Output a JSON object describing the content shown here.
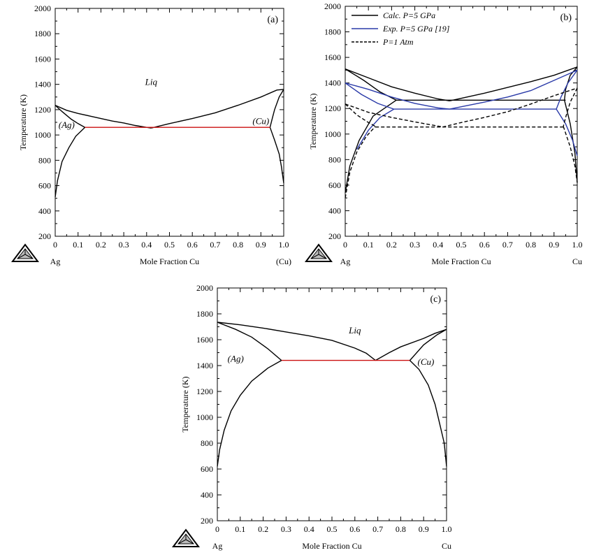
{
  "chart_data": [
    {
      "type": "line",
      "panel_label": "(a)",
      "xlabel": "Mole Fraction Cu",
      "ylabel": "Temperature (K)",
      "xlim": [
        0,
        1.0
      ],
      "ylim": [
        200,
        2000
      ],
      "x_ticks": [
        "0",
        "0.1",
        "0.2",
        "0.3",
        "0.4",
        "0.5",
        "0.6",
        "0.7",
        "0.8",
        "0.9",
        "1.0"
      ],
      "y_ticks": [
        "200",
        "400",
        "600",
        "800",
        "1000",
        "1200",
        "1400",
        "1600",
        "1800",
        "2000"
      ],
      "left_end_label": "Ag",
      "right_end_label": "(Cu)",
      "region_labels": [
        {
          "text": "Liq",
          "x": 0.42,
          "y": 1395
        },
        {
          "text": "(Ag)",
          "x": 0.05,
          "y": 1055
        },
        {
          "text": "(Cu)",
          "x": 0.9,
          "y": 1085
        }
      ],
      "grid": false,
      "series": [
        {
          "color": "#000000",
          "dash": "solid",
          "points": [
            [
              0,
              1235
            ],
            [
              0.05,
              1195
            ],
            [
              0.1,
              1170
            ],
            [
              0.15,
              1150
            ],
            [
              0.2,
              1130
            ],
            [
              0.25,
              1110
            ],
            [
              0.3,
              1095
            ],
            [
              0.35,
              1075
            ],
            [
              0.4,
              1060
            ],
            [
              0.42,
              1055
            ]
          ]
        },
        {
          "color": "#000000",
          "dash": "solid",
          "points": [
            [
              0.42,
              1055
            ],
            [
              0.5,
              1090
            ],
            [
              0.6,
              1130
            ],
            [
              0.7,
              1175
            ],
            [
              0.8,
              1235
            ],
            [
              0.9,
              1300
            ],
            [
              0.97,
              1355
            ],
            [
              1.0,
              1360
            ]
          ]
        },
        {
          "color": "#000000",
          "dash": "solid",
          "points": [
            [
              0,
              1235
            ],
            [
              0.03,
              1185
            ],
            [
              0.07,
              1125
            ],
            [
              0.1,
              1090
            ],
            [
              0.13,
              1060
            ]
          ]
        },
        {
          "color": "#000000",
          "dash": "solid",
          "points": [
            [
              0,
              510
            ],
            [
              0.01,
              640
            ],
            [
              0.03,
              790
            ],
            [
              0.06,
              900
            ],
            [
              0.09,
              990
            ],
            [
              0.13,
              1060
            ]
          ]
        },
        {
          "color": "#000000",
          "dash": "solid",
          "points": [
            [
              1.0,
              1360
            ],
            [
              0.98,
              1300
            ],
            [
              0.96,
              1200
            ],
            [
              0.95,
              1130
            ],
            [
              0.94,
              1060
            ]
          ]
        },
        {
          "color": "#000000",
          "dash": "solid",
          "points": [
            [
              0.94,
              1060
            ],
            [
              0.96,
              960
            ],
            [
              0.98,
              850
            ],
            [
              0.99,
              750
            ],
            [
              1.0,
              620
            ]
          ]
        },
        {
          "color": "#cc1111",
          "dash": "solid",
          "points": [
            [
              0.13,
              1060
            ],
            [
              0.94,
              1060
            ]
          ]
        }
      ]
    },
    {
      "type": "line",
      "panel_label": "(b)",
      "xlabel": "Mole Fraction Cu",
      "ylabel": "Temperature (K)",
      "xlim": [
        0,
        1.0
      ],
      "ylim": [
        200,
        2000
      ],
      "x_ticks": [
        "0",
        "0.1",
        "0.2",
        "0.3",
        "0.4",
        "0.5",
        "0.6",
        "0.7",
        "0.8",
        "0.9",
        "1.0"
      ],
      "y_ticks": [
        "200",
        "400",
        "600",
        "800",
        "1000",
        "1200",
        "1400",
        "1600",
        "1800",
        "2000"
      ],
      "left_end_label": "Ag",
      "right_end_label": "Cu",
      "grid": false,
      "legend": {
        "placement": "top-left",
        "entries": [
          {
            "label": "Calc. P=5 GPa",
            "color": "#000000",
            "dash": "solid"
          },
          {
            "label": "Exp. P=5 GPa  [19]",
            "color": "#2a3aa8",
            "dash": "solid"
          },
          {
            "label": "P=1 Atm",
            "color": "#000000",
            "dash": "dashed"
          }
        ]
      },
      "series": [
        {
          "name": "Calc. P=5 GPa",
          "color": "#000000",
          "dash": "solid",
          "points": [
            [
              0,
              1510
            ],
            [
              0.1,
              1440
            ],
            [
              0.2,
              1370
            ],
            [
              0.3,
              1320
            ],
            [
              0.4,
              1275
            ],
            [
              0.45,
              1260
            ]
          ]
        },
        {
          "color": "#000000",
          "dash": "solid",
          "points": [
            [
              0.45,
              1260
            ],
            [
              0.6,
              1320
            ],
            [
              0.7,
              1365
            ],
            [
              0.8,
              1410
            ],
            [
              0.9,
              1460
            ],
            [
              1.0,
              1525
            ]
          ]
        },
        {
          "color": "#000000",
          "dash": "solid",
          "points": [
            [
              0,
              1510
            ],
            [
              0.08,
              1420
            ],
            [
              0.15,
              1330
            ],
            [
              0.22,
              1265
            ]
          ]
        },
        {
          "color": "#000000",
          "dash": "solid",
          "points": [
            [
              0,
              540
            ],
            [
              0.02,
              750
            ],
            [
              0.06,
              950
            ],
            [
              0.12,
              1140
            ],
            [
              0.22,
              1265
            ]
          ]
        },
        {
          "color": "#000000",
          "dash": "solid",
          "points": [
            [
              0.22,
              1265
            ],
            [
              0.95,
              1265
            ]
          ]
        },
        {
          "color": "#000000",
          "dash": "solid",
          "points": [
            [
              1.0,
              1525
            ],
            [
              0.97,
              1460
            ],
            [
              0.95,
              1350
            ],
            [
              0.945,
              1265
            ]
          ]
        },
        {
          "color": "#000000",
          "dash": "solid",
          "points": [
            [
              0.945,
              1265
            ],
            [
              0.97,
              1080
            ],
            [
              0.99,
              850
            ],
            [
              1.0,
              620
            ]
          ]
        },
        {
          "name": "Exp. P=5 GPa  [19]",
          "color": "#2a3aa8",
          "dash": "solid",
          "points": [
            [
              0,
              1400
            ],
            [
              0.1,
              1350
            ],
            [
              0.2,
              1290
            ],
            [
              0.3,
              1240
            ],
            [
              0.4,
              1205
            ],
            [
              0.45,
              1195
            ]
          ]
        },
        {
          "color": "#2a3aa8",
          "dash": "solid",
          "points": [
            [
              0.45,
              1195
            ],
            [
              0.6,
              1250
            ],
            [
              0.7,
              1290
            ],
            [
              0.8,
              1340
            ],
            [
              0.9,
              1420
            ],
            [
              1.0,
              1500
            ]
          ]
        },
        {
          "color": "#2a3aa8",
          "dash": "solid",
          "points": [
            [
              0,
              1400
            ],
            [
              0.07,
              1310
            ],
            [
              0.14,
              1240
            ],
            [
              0.21,
              1195
            ]
          ]
        },
        {
          "color": "#2a3aa8",
          "dash": "solid",
          "points": [
            [
              0.05,
              880
            ],
            [
              0.1,
              1030
            ],
            [
              0.15,
              1130
            ],
            [
              0.21,
              1195
            ]
          ]
        },
        {
          "color": "#2a3aa8",
          "dash": "solid",
          "points": [
            [
              0.21,
              1195
            ],
            [
              0.91,
              1195
            ]
          ]
        },
        {
          "color": "#2a3aa8",
          "dash": "solid",
          "points": [
            [
              1.0,
              1500
            ],
            [
              0.96,
              1400
            ],
            [
              0.93,
              1290
            ],
            [
              0.91,
              1195
            ]
          ]
        },
        {
          "color": "#2a3aa8",
          "dash": "solid",
          "points": [
            [
              0.91,
              1195
            ],
            [
              0.95,
              1080
            ],
            [
              0.98,
              950
            ],
            [
              1.0,
              830
            ]
          ]
        },
        {
          "name": "P=1 Atm",
          "color": "#000000",
          "dash": "dashed",
          "points": [
            [
              0,
              1235
            ],
            [
              0.1,
              1170
            ],
            [
              0.2,
              1130
            ],
            [
              0.3,
              1095
            ],
            [
              0.4,
              1062
            ],
            [
              0.42,
              1055
            ]
          ]
        },
        {
          "color": "#000000",
          "dash": "dashed",
          "points": [
            [
              0.42,
              1055
            ],
            [
              0.5,
              1090
            ],
            [
              0.6,
              1130
            ],
            [
              0.7,
              1175
            ],
            [
              0.8,
              1235
            ],
            [
              0.9,
              1300
            ],
            [
              1.0,
              1360
            ]
          ]
        },
        {
          "color": "#000000",
          "dash": "dashed",
          "points": [
            [
              0,
              1235
            ],
            [
              0.05,
              1150
            ],
            [
              0.1,
              1090
            ],
            [
              0.13,
              1060
            ]
          ]
        },
        {
          "color": "#000000",
          "dash": "dashed",
          "points": [
            [
              0,
              500
            ],
            [
              0.02,
              700
            ],
            [
              0.05,
              860
            ],
            [
              0.09,
              980
            ],
            [
              0.13,
              1060
            ]
          ]
        },
        {
          "color": "#000000",
          "dash": "dashed",
          "points": [
            [
              0.13,
              1055
            ],
            [
              0.94,
              1055
            ]
          ]
        },
        {
          "color": "#000000",
          "dash": "dashed",
          "points": [
            [
              1.0,
              1360
            ],
            [
              0.97,
              1250
            ],
            [
              0.95,
              1130
            ],
            [
              0.94,
              1060
            ]
          ]
        },
        {
          "color": "#000000",
          "dash": "dashed",
          "points": [
            [
              0.94,
              1060
            ],
            [
              0.97,
              900
            ],
            [
              0.99,
              750
            ],
            [
              1.0,
              620
            ]
          ]
        }
      ]
    },
    {
      "type": "line",
      "panel_label": "(c)",
      "xlabel": "Mole Fraction Cu",
      "ylabel": "Temperature (K)",
      "xlim": [
        0,
        1.0
      ],
      "ylim": [
        200,
        2000
      ],
      "x_ticks": [
        "0",
        "0.1",
        "0.2",
        "0.3",
        "0.4",
        "0.5",
        "0.6",
        "0.7",
        "0.8",
        "0.9",
        "1.0"
      ],
      "y_ticks": [
        "200",
        "400",
        "600",
        "800",
        "1000",
        "1200",
        "1400",
        "1600",
        "1800",
        "2000"
      ],
      "left_end_label": "Ag",
      "right_end_label": "Cu",
      "region_labels": [
        {
          "text": "Liq",
          "x": 0.6,
          "y": 1650
        },
        {
          "text": "(Ag)",
          "x": 0.08,
          "y": 1430
        },
        {
          "text": "(Cu)",
          "x": 0.91,
          "y": 1405
        }
      ],
      "grid": false,
      "series": [
        {
          "color": "#000000",
          "dash": "solid",
          "points": [
            [
              0,
              1735
            ],
            [
              0.1,
              1715
            ],
            [
              0.2,
              1690
            ],
            [
              0.3,
              1660
            ],
            [
              0.4,
              1630
            ],
            [
              0.5,
              1595
            ],
            [
              0.6,
              1535
            ],
            [
              0.65,
              1495
            ],
            [
              0.69,
              1440
            ]
          ]
        },
        {
          "color": "#000000",
          "dash": "solid",
          "points": [
            [
              0.69,
              1440
            ],
            [
              0.75,
              1500
            ],
            [
              0.8,
              1545
            ],
            [
              0.9,
              1610
            ],
            [
              0.95,
              1650
            ],
            [
              1.0,
              1680
            ]
          ]
        },
        {
          "color": "#000000",
          "dash": "solid",
          "points": [
            [
              0,
              1735
            ],
            [
              0.08,
              1680
            ],
            [
              0.15,
              1620
            ],
            [
              0.22,
              1530
            ],
            [
              0.28,
              1440
            ]
          ]
        },
        {
          "color": "#000000",
          "dash": "solid",
          "points": [
            [
              0,
              620
            ],
            [
              0.01,
              750
            ],
            [
              0.03,
              900
            ],
            [
              0.06,
              1050
            ],
            [
              0.1,
              1170
            ],
            [
              0.15,
              1280
            ],
            [
              0.22,
              1380
            ],
            [
              0.28,
              1440
            ]
          ]
        },
        {
          "color": "#cc1111",
          "dash": "solid",
          "points": [
            [
              0.28,
              1440
            ],
            [
              0.84,
              1440
            ]
          ]
        },
        {
          "color": "#000000",
          "dash": "solid",
          "points": [
            [
              1.0,
              1680
            ],
            [
              0.96,
              1640
            ],
            [
              0.9,
              1560
            ],
            [
              0.84,
              1440
            ]
          ]
        },
        {
          "color": "#000000",
          "dash": "solid",
          "points": [
            [
              0.84,
              1440
            ],
            [
              0.88,
              1370
            ],
            [
              0.92,
              1250
            ],
            [
              0.95,
              1100
            ],
            [
              0.97,
              950
            ],
            [
              0.99,
              800
            ],
            [
              1.0,
              620
            ]
          ]
        }
      ]
    }
  ]
}
